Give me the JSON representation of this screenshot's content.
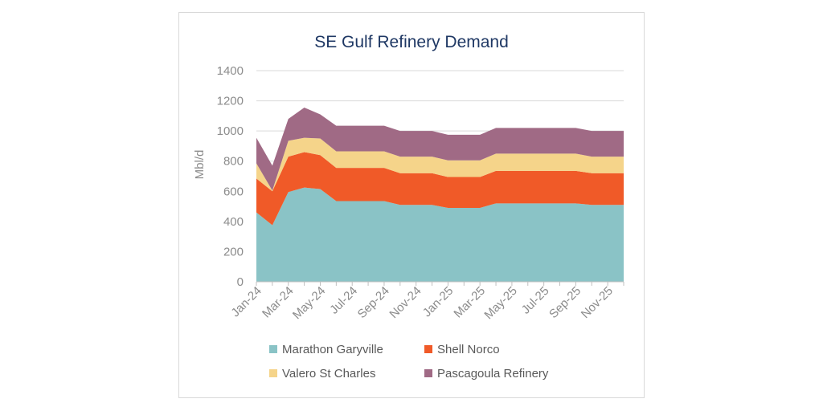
{
  "chart_data": {
    "type": "area",
    "stacked": true,
    "title": "SE Gulf Refinery Demand",
    "xlabel": "",
    "ylabel": "Mbl/d",
    "ylim": [
      0,
      1400
    ],
    "yticks": [
      0,
      200,
      400,
      600,
      800,
      1000,
      1200,
      1400
    ],
    "x": [
      "Jan-24",
      "Feb-24",
      "Mar-24",
      "Apr-24",
      "May-24",
      "Jun-24",
      "Jul-24",
      "Aug-24",
      "Sep-24",
      "Oct-24",
      "Nov-24",
      "Dec-24",
      "Jan-25",
      "Feb-25",
      "Mar-25",
      "Apr-25",
      "May-25",
      "Jun-25",
      "Jul-25",
      "Aug-25",
      "Sep-25",
      "Oct-25",
      "Nov-25",
      "Dec-25"
    ],
    "xtick_labels": [
      "Jan-24",
      "Mar-24",
      "May-24",
      "Jul-24",
      "Sep-24",
      "Nov-24",
      "Jan-25",
      "Mar-25",
      "May-25",
      "Jul-25",
      "Sep-25",
      "Nov-25"
    ],
    "grid": true,
    "legend_position": "bottom",
    "series": [
      {
        "name": "Marathon Garyville",
        "color": "#8ac3c6",
        "values": [
          460,
          375,
          595,
          625,
          615,
          535,
          535,
          535,
          535,
          510,
          510,
          510,
          490,
          490,
          490,
          520,
          520,
          520,
          520,
          520,
          520,
          510,
          510,
          510
        ]
      },
      {
        "name": "Shell Norco",
        "color": "#f05a28",
        "values": [
          225,
          225,
          235,
          235,
          225,
          220,
          220,
          220,
          220,
          210,
          210,
          210,
          205,
          205,
          205,
          215,
          215,
          215,
          215,
          215,
          215,
          210,
          210,
          210
        ]
      },
      {
        "name": "Valero St Charles",
        "color": "#f5d48a",
        "values": [
          100,
          5,
          105,
          95,
          110,
          110,
          110,
          110,
          110,
          110,
          110,
          110,
          110,
          110,
          110,
          115,
          115,
          115,
          115,
          115,
          115,
          110,
          110,
          110
        ]
      },
      {
        "name": "Pascagoula Refinery",
        "color": "#a06a85",
        "values": [
          170,
          165,
          145,
          200,
          160,
          170,
          170,
          170,
          170,
          170,
          170,
          170,
          170,
          170,
          170,
          170,
          170,
          170,
          170,
          170,
          170,
          170,
          170,
          170
        ]
      }
    ]
  }
}
